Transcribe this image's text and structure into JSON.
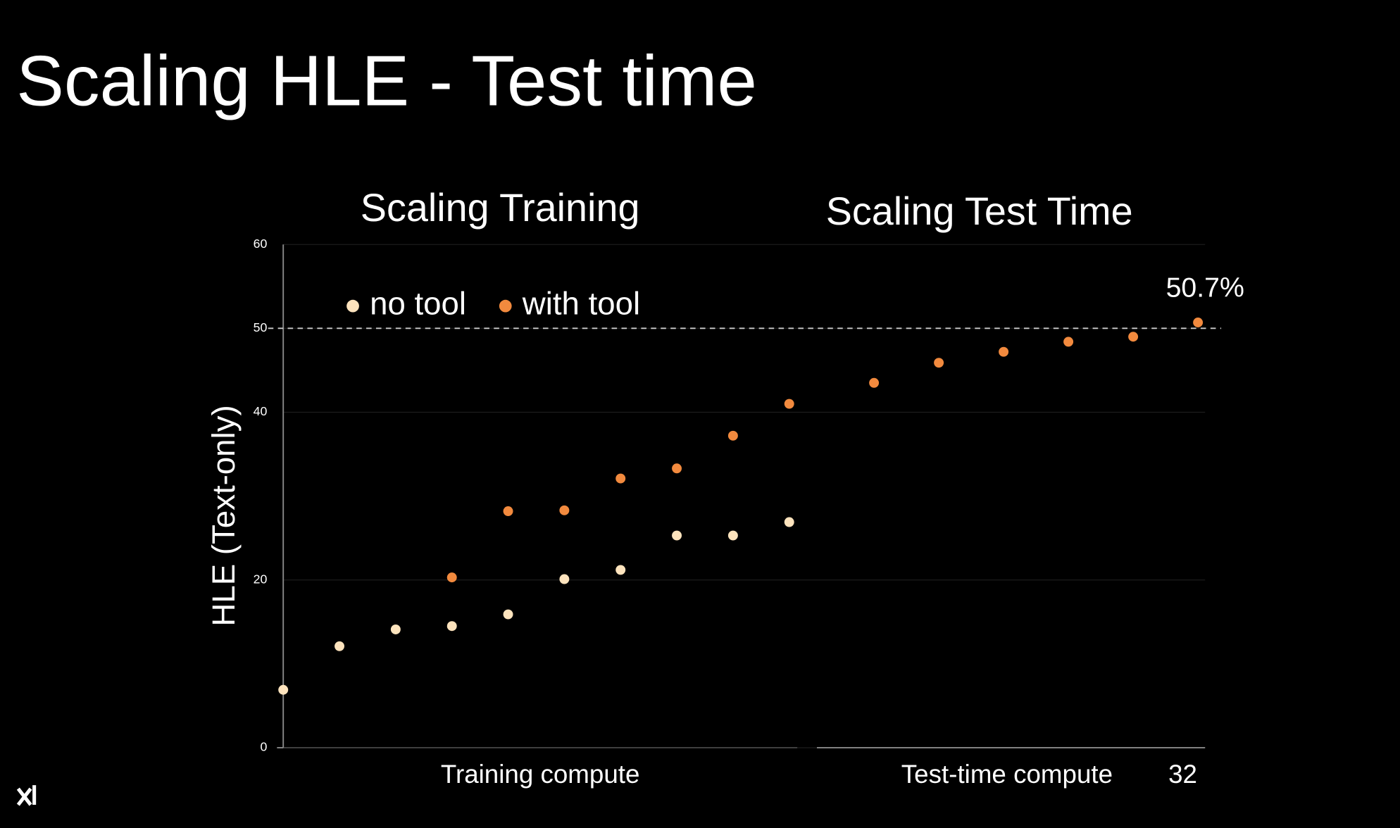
{
  "title": "Scaling HLE - Test time",
  "chart_data": [
    {
      "type": "scatter",
      "title": "Scaling Training",
      "xlabel": "Training compute",
      "ylabel": "HLE (Text-only)",
      "categories": [
        null,
        null,
        null,
        null,
        null,
        null,
        null,
        null,
        null,
        null
      ],
      "series": [
        {
          "name": "no tool",
          "color": "#fde3bd",
          "values": [
            6.9,
            12.1,
            14.1,
            14.5,
            15.9,
            20.1,
            21.2,
            25.3,
            25.3,
            26.9
          ]
        },
        {
          "name": "with tool",
          "color": "#f28a3e",
          "values": [
            null,
            null,
            null,
            20.3,
            28.2,
            28.3,
            32.1,
            33.3,
            37.2,
            41.0
          ]
        }
      ],
      "ylim": [
        0,
        60
      ],
      "yticks": [
        0,
        20,
        40,
        50,
        60
      ],
      "grid": true,
      "reference_line": 50,
      "legend": "top-left"
    },
    {
      "type": "scatter",
      "title": "Scaling Test Time",
      "xlabel": "Test-time compute",
      "categories": [
        null,
        null,
        null,
        null,
        null,
        "32"
      ],
      "series": [
        {
          "name": "with tool",
          "color": "#f28a3e",
          "values": [
            43.5,
            45.9,
            47.2,
            48.4,
            49.0,
            50.7
          ],
          "value_labels": [
            null,
            null,
            null,
            null,
            null,
            "50.7%"
          ]
        }
      ],
      "ylim": [
        0,
        60
      ]
    }
  ]
}
